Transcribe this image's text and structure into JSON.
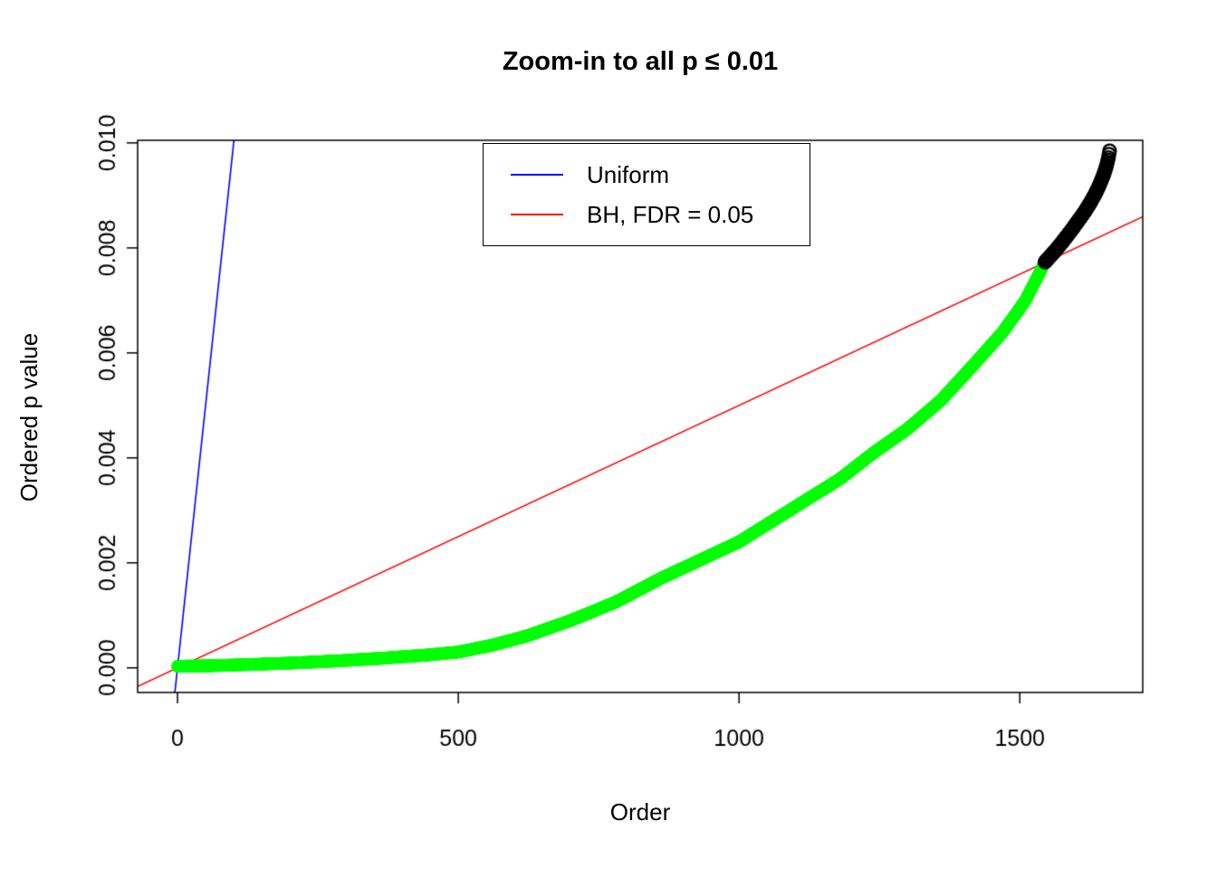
{
  "chart_data": {
    "type": "scatter",
    "title": "Zoom-in to all p ≤ 0.01",
    "xlabel": "Order",
    "ylabel": "Ordered p value",
    "xlim": [
      -71,
      1719
    ],
    "ylim": [
      -0.00047,
      0.01005
    ],
    "x_ticks": [
      0,
      500,
      1000,
      1500
    ],
    "x_tick_labels": [
      "0",
      "500",
      "1000",
      "1500"
    ],
    "y_ticks": [
      0.0,
      0.002,
      0.004,
      0.006,
      0.008,
      0.01
    ],
    "y_tick_labels": [
      "0.000",
      "0.002",
      "0.004",
      "0.006",
      "0.008",
      "0.010"
    ],
    "grid": false,
    "legend": {
      "position": "top-center-inside",
      "entries": [
        {
          "label": "Uniform",
          "color": "#0000ff"
        },
        {
          "label": "BH, FDR = 0.05",
          "color": "#ff0000"
        }
      ]
    },
    "lines": [
      {
        "name": "uniform-expectation",
        "color": "#0000ff",
        "slope": 0.0001,
        "intercept": 0,
        "width": 1.6
      },
      {
        "name": "bh-threshold-fdr-0.05",
        "color": "#ff0000",
        "slope": 5e-06,
        "intercept": 0,
        "width": 1.6
      }
    ],
    "n_tests": 10000,
    "fdr": 0.05,
    "point_step": 1,
    "marker_radius": 7,
    "series": [
      {
        "name": "rejected-significant",
        "color": "#00ff00",
        "style": "filled",
        "marker": "circle",
        "order_range": [
          0,
          1545
        ],
        "anchors": [
          [
            0,
            3e-05
          ],
          [
            60,
            4e-05
          ],
          [
            120,
            6e-05
          ],
          [
            200,
            9e-05
          ],
          [
            280,
            0.00013
          ],
          [
            360,
            0.00018
          ],
          [
            440,
            0.00024
          ],
          [
            500,
            0.0003
          ],
          [
            560,
            0.00043
          ],
          [
            620,
            0.0006
          ],
          [
            700,
            0.0009
          ],
          [
            780,
            0.00125
          ],
          [
            860,
            0.0017
          ],
          [
            940,
            0.0021
          ],
          [
            1000,
            0.0024
          ],
          [
            1060,
            0.0028
          ],
          [
            1120,
            0.0032
          ],
          [
            1180,
            0.0036
          ],
          [
            1240,
            0.0041
          ],
          [
            1300,
            0.00455
          ],
          [
            1360,
            0.0051
          ],
          [
            1420,
            0.0058
          ],
          [
            1470,
            0.0064
          ],
          [
            1510,
            0.007
          ],
          [
            1545,
            0.00773
          ]
        ]
      },
      {
        "name": "not-rejected",
        "color": "#000000",
        "style": "open",
        "marker": "circle",
        "order_range": [
          1545,
          1660
        ],
        "anchors": [
          [
            1545,
            0.00773
          ],
          [
            1555,
            0.00785
          ],
          [
            1565,
            0.00797
          ],
          [
            1575,
            0.0081
          ],
          [
            1585,
            0.00824
          ],
          [
            1595,
            0.00838
          ],
          [
            1605,
            0.00853
          ],
          [
            1615,
            0.00868
          ],
          [
            1625,
            0.00885
          ],
          [
            1634,
            0.00902
          ],
          [
            1642,
            0.0092
          ],
          [
            1649,
            0.00938
          ],
          [
            1654,
            0.00955
          ],
          [
            1658,
            0.00972
          ],
          [
            1660,
            0.00985
          ]
        ]
      }
    ]
  }
}
